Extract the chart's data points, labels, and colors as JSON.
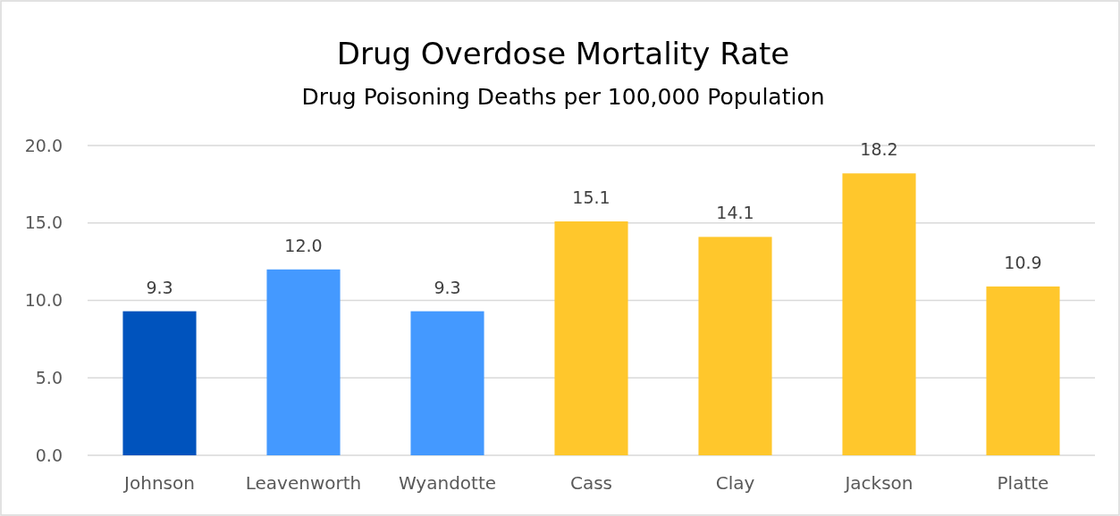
{
  "chart_data": {
    "type": "bar",
    "title": "Drug Overdose Mortality Rate",
    "subtitle": "Drug Poisoning Deaths per 100,000 Population",
    "categories": [
      "Johnson",
      "Leavenworth",
      "Wyandotte",
      "Cass",
      "Clay",
      "Jackson",
      "Platte"
    ],
    "values": [
      9.3,
      12.0,
      9.3,
      15.1,
      14.1,
      18.2,
      10.9
    ],
    "colors": [
      "#0053bd",
      "#4499ff",
      "#4499ff",
      "#ffc72c",
      "#ffc72c",
      "#ffc72c",
      "#ffc72c"
    ],
    "value_labels": [
      "9.3",
      "12.0",
      "9.3",
      "15.1",
      "14.1",
      "18.2",
      "10.9"
    ],
    "ylim": [
      0,
      20
    ],
    "yticks": [
      {
        "value": 0,
        "label": "0.0"
      },
      {
        "value": 5,
        "label": "5.0"
      },
      {
        "value": 10,
        "label": "10.0"
      },
      {
        "value": 15,
        "label": "15.0"
      },
      {
        "value": 20,
        "label": "20.0"
      }
    ],
    "grid": "y"
  }
}
